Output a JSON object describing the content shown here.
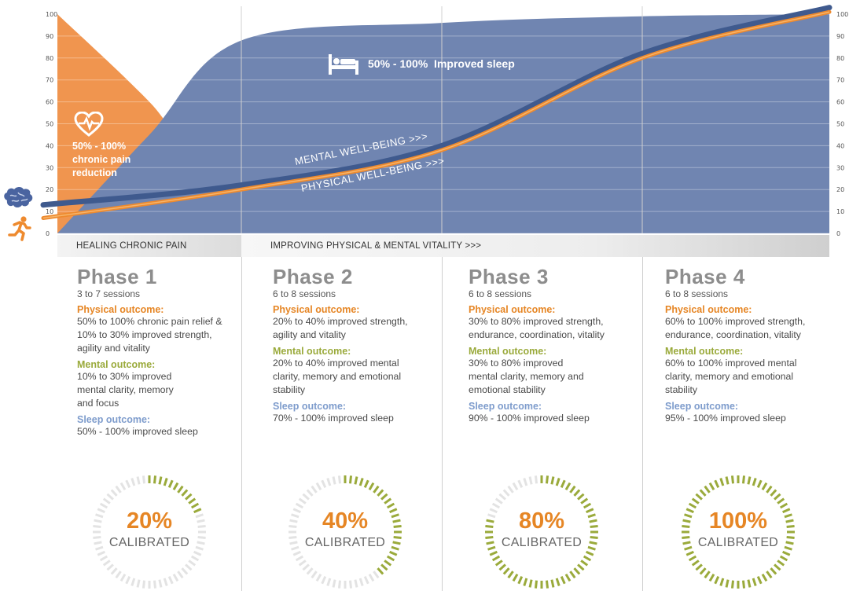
{
  "chart_data": {
    "type": "area",
    "x_categories": [
      "Phase 1",
      "Phase 2",
      "Phase 3",
      "Phase 4"
    ],
    "y_ticks": [
      0,
      10,
      20,
      30,
      40,
      50,
      60,
      70,
      80,
      90,
      100
    ],
    "ylim": [
      0,
      100
    ],
    "series": [
      {
        "name": "chronic pain",
        "kind": "area",
        "color": "#ee8a3c",
        "points": [
          [
            0,
            100
          ],
          [
            0.5,
            60
          ],
          [
            1,
            14
          ],
          [
            2,
            4
          ],
          [
            3,
            2
          ],
          [
            4,
            1
          ]
        ]
      },
      {
        "name": "improved sleep",
        "kind": "area",
        "color": "#7085b1",
        "points": [
          [
            0,
            0
          ],
          [
            0.5,
            45
          ],
          [
            1,
            88
          ],
          [
            2,
            96
          ],
          [
            3,
            99
          ],
          [
            4,
            100
          ]
        ]
      },
      {
        "name": "MENTAL WELL-BEING",
        "kind": "line",
        "color": "#3f5a8e",
        "points": [
          [
            0,
            13
          ],
          [
            1,
            22
          ],
          [
            2,
            40
          ],
          [
            3,
            82
          ],
          [
            4,
            103
          ]
        ]
      },
      {
        "name": "PHYSICAL WELL-BEING",
        "kind": "line",
        "color": "#ee8a2e",
        "points": [
          [
            0,
            7
          ],
          [
            1,
            20
          ],
          [
            2,
            38
          ],
          [
            3,
            80
          ],
          [
            4,
            101
          ]
        ]
      }
    ],
    "annotations": {
      "sleep": "50% - 100%  Improved sleep",
      "pain": "50% - 100%\nchronic pain\nreduction",
      "mental_label": "MENTAL WELL-BEING >>>",
      "physical_label": "PHYSICAL WELL-BEING >>>"
    },
    "grid": true,
    "legend": "none"
  },
  "bands": {
    "left": "HEALING CHRONIC PAIN",
    "right": "IMPROVING  PHYSICAL & MENTAL VITALITY >>>"
  },
  "phases": [
    {
      "title": "Phase 1",
      "sessions": "3 to 7 sessions",
      "physical_label": "Physical outcome:",
      "physical": "50% to 100% chronic pain relief &\n10% to 30% improved strength,\nagility and vitality",
      "mental_label": "Mental outcome:",
      "mental": "10% to 30% improved\nmental clarity, memory\nand focus",
      "sleep_label": "Sleep outcome:",
      "sleep": "50% - 100% improved sleep",
      "calibrated": "20%",
      "calibrated_label": "CALIBRATED",
      "calibrated_value": 0.2
    },
    {
      "title": "Phase 2",
      "sessions": "6 to 8 sessions",
      "physical_label": "Physical outcome:",
      "physical": "20% to 40% improved strength,\nagility and vitality",
      "mental_label": "Mental outcome:",
      "mental": "20% to 40% improved mental\nclarity, memory and emotional\nstability",
      "sleep_label": "Sleep outcome:",
      "sleep": "70% - 100% improved sleep",
      "calibrated": "40%",
      "calibrated_label": "CALIBRATED",
      "calibrated_value": 0.4
    },
    {
      "title": "Phase 3",
      "sessions": "6 to 8 sessions",
      "physical_label": "Physical outcome:",
      "physical": "30% to 80% improved strength,\nendurance, coordination, vitality",
      "mental_label": "Mental outcome:",
      "mental": "30% to 80% improved\nmental clarity, memory and\nemotional stability",
      "sleep_label": "Sleep outcome:",
      "sleep": "90% - 100% improved sleep",
      "calibrated": "80%",
      "calibrated_label": "CALIBRATED",
      "calibrated_value": 0.8
    },
    {
      "title": "Phase 4",
      "sessions": "6 to 8 sessions",
      "physical_label": "Physical outcome:",
      "physical": "60% to 100% improved strength,\nendurance, coordination, vitality",
      "mental_label": "Mental outcome:",
      "mental": "60% to 100% improved mental\nclarity, memory and emotional\nstability",
      "sleep_label": "Sleep outcome:",
      "sleep": "95% - 100% improved sleep",
      "calibrated": "100%",
      "calibrated_label": "CALIBRATED",
      "calibrated_value": 1.0
    }
  ],
  "icons": [
    "heart-rate-icon",
    "bed-icon",
    "brain-icon",
    "runner-icon"
  ],
  "colors": {
    "orange": "#ee8a3c",
    "blue": "#7085b1",
    "green": "#9aaa3b",
    "gauge_empty": "#e3e3e3"
  }
}
